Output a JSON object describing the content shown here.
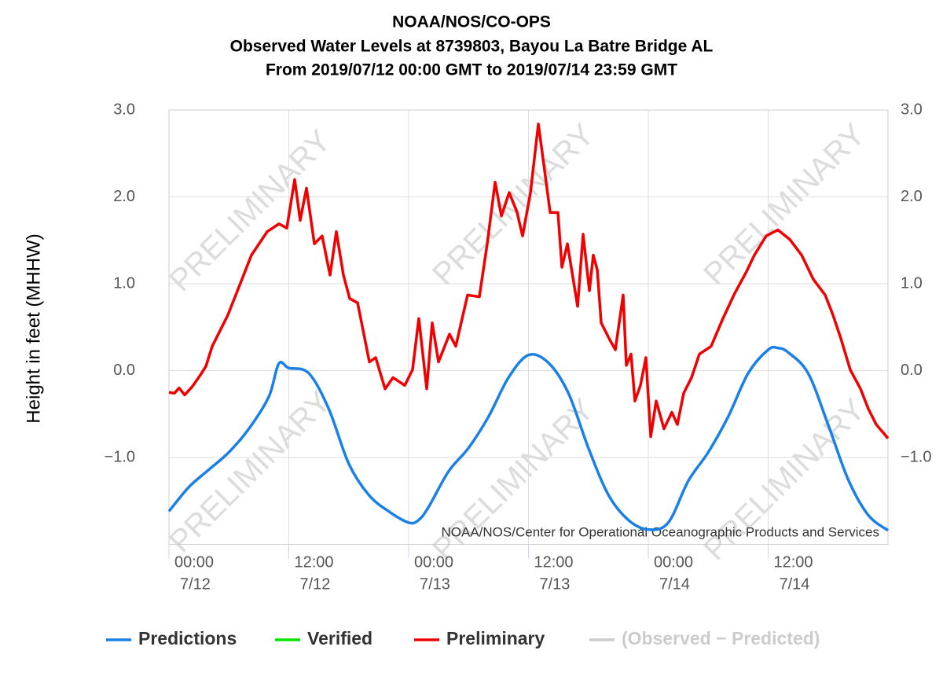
{
  "chart_data": {
    "type": "line",
    "title": [
      "NOAA/NOS/CO-OPS",
      "Observed Water Levels at 8739803, Bayou La Batre Bridge AL",
      "From 2019/07/12 00:00 GMT to 2019/07/14 23:59 GMT"
    ],
    "y_label": "Height in feet (MHHW)",
    "credit": "NOAA/NOS/Center for Operational Oceanographic Products and Services",
    "watermark": "PRELIMINARY",
    "xlim": [
      0,
      72
    ],
    "xticks": [
      {
        "value": 0,
        "label": [
          "00:00",
          "7/12"
        ]
      },
      {
        "value": 12,
        "label": [
          "12:00",
          "7/12"
        ]
      },
      {
        "value": 24,
        "label": [
          "00:00",
          "7/13"
        ]
      },
      {
        "value": 36,
        "label": [
          "12:00",
          "7/13"
        ]
      },
      {
        "value": 48,
        "label": [
          "00:00",
          "7/14"
        ]
      },
      {
        "value": 60,
        "label": [
          "12:00",
          "7/14"
        ]
      }
    ],
    "ylim": [
      -2,
      3
    ],
    "yticks": [
      {
        "value": 3,
        "label": "3.0"
      },
      {
        "value": 2,
        "label": "2.0"
      },
      {
        "value": 1,
        "label": "1.0"
      },
      {
        "value": 0,
        "label": "0.0"
      },
      {
        "value": -1,
        "label": "−1.0"
      }
    ],
    "grid": true,
    "legend": "bottom",
    "series": [
      {
        "name": "Predictions",
        "color": "#1a80e8",
        "smooth": true,
        "x": [
          0,
          2,
          4,
          6,
          8,
          10,
          11,
          12,
          14,
          16,
          18,
          20,
          22,
          24,
          25,
          26,
          28,
          30,
          32,
          34,
          36,
          38,
          40,
          42,
          44,
          46,
          48,
          50,
          52,
          54,
          56,
          58,
          60,
          61,
          62,
          64,
          66,
          68,
          70,
          72
        ],
        "values": [
          -1.62,
          -1.34,
          -1.14,
          -0.94,
          -0.67,
          -0.3,
          0.08,
          0.03,
          -0.03,
          -0.44,
          -1.07,
          -1.43,
          -1.62,
          -1.75,
          -1.72,
          -1.57,
          -1.16,
          -0.89,
          -0.53,
          -0.08,
          0.18,
          0.09,
          -0.26,
          -0.89,
          -1.43,
          -1.72,
          -1.83,
          -1.75,
          -1.27,
          -0.94,
          -0.53,
          -0.03,
          0.24,
          0.26,
          0.21,
          -0.03,
          -0.62,
          -1.25,
          -1.66,
          -1.84
        ]
      },
      {
        "name": "Verified",
        "color": "#00e600",
        "x": [],
        "values": []
      },
      {
        "name": "Preliminary",
        "color": "#f00000",
        "x": [
          0,
          0.55,
          1.02,
          1.57,
          2.36,
          3.15,
          3.7,
          4.33,
          5.9,
          6.69,
          8.26,
          9.84,
          11.02,
          11.8,
          12.59,
          13.14,
          13.77,
          14.56,
          15.34,
          16.13,
          16.76,
          17.47,
          18.1,
          18.89,
          20.07,
          20.7,
          21.64,
          22.43,
          23.61,
          24.39,
          25.02,
          25.81,
          26.36,
          26.99,
          28.09,
          28.72,
          29.9,
          31.08,
          31.87,
          32.66,
          33.29,
          34.07,
          34.86,
          35.41,
          36.2,
          36.99,
          37.54,
          38.17,
          38.95,
          39.35,
          39.9,
          40.92,
          41.47,
          42.1,
          42.49,
          42.89,
          43.28,
          44.07,
          44.7,
          45.48,
          45.8,
          46.27,
          46.66,
          47.21,
          47.76,
          48.24,
          48.79,
          49.57,
          50.36,
          50.91,
          51.54,
          52.33,
          53.11,
          54.29,
          55.47,
          56.65,
          57.83,
          58.62,
          59.8,
          60.98,
          62.17,
          63.35,
          64.53,
          65.71,
          66.49,
          67.28,
          68.22,
          69.25,
          70.03,
          70.82,
          72
        ],
        "values": [
          -0.25,
          -0.26,
          -0.2,
          -0.28,
          -0.18,
          -0.05,
          0.05,
          0.28,
          0.64,
          0.87,
          1.33,
          1.6,
          1.69,
          1.64,
          2.2,
          1.73,
          2.1,
          1.46,
          1.55,
          1.1,
          1.6,
          1.1,
          0.83,
          0.78,
          0.1,
          0.15,
          -0.21,
          -0.08,
          -0.17,
          0.01,
          0.6,
          -0.21,
          0.55,
          0.1,
          0.42,
          0.28,
          0.87,
          0.85,
          1.46,
          2.17,
          1.78,
          2.05,
          1.82,
          1.55,
          2.05,
          2.84,
          2.37,
          1.82,
          1.82,
          1.19,
          1.46,
          0.74,
          1.57,
          0.92,
          1.33,
          1.16,
          0.55,
          0.37,
          0.24,
          0.87,
          0.06,
          0.19,
          -0.35,
          -0.17,
          0.15,
          -0.76,
          -0.35,
          -0.67,
          -0.48,
          -0.62,
          -0.26,
          -0.08,
          0.19,
          0.28,
          0.6,
          0.89,
          1.14,
          1.33,
          1.55,
          1.62,
          1.51,
          1.33,
          1.05,
          0.87,
          0.64,
          0.37,
          0.01,
          -0.21,
          -0.44,
          -0.62,
          -0.78
        ]
      },
      {
        "name": "(Observed − Predicted)",
        "color": "#cccccc",
        "visible": false,
        "x": [],
        "values": []
      }
    ]
  }
}
